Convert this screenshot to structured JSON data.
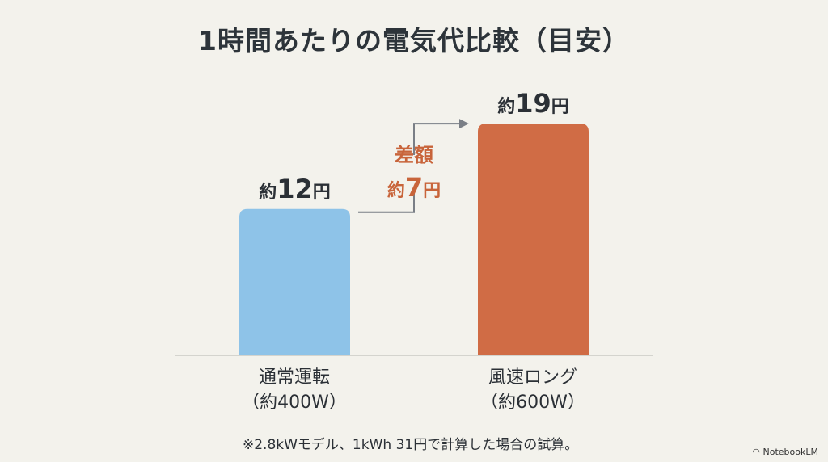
{
  "chart_data": {
    "type": "bar",
    "title": "1時間あたりの電気代比較（目安）",
    "categories": [
      "通常運転",
      "風速ロング"
    ],
    "category_sublabels": [
      "（約400W）",
      "（約600W）"
    ],
    "values": [
      12,
      19
    ],
    "data_labels": [
      {
        "prefix": "約",
        "number": "12",
        "unit": "円"
      },
      {
        "prefix": "約",
        "number": "19",
        "unit": "円"
      }
    ],
    "bar_colors": [
      "#8ec3e8",
      "#d06c45"
    ],
    "ylim": [
      0,
      20
    ],
    "grid": false,
    "annotation": {
      "line1": "差額",
      "prefix": "約",
      "number": "7",
      "unit": "円",
      "value": 7,
      "color": "#c8643a"
    },
    "footnote": "※2.8kWモデル、1kWh 31円で計算した場合の試算。"
  },
  "brand": "NotebookLM"
}
